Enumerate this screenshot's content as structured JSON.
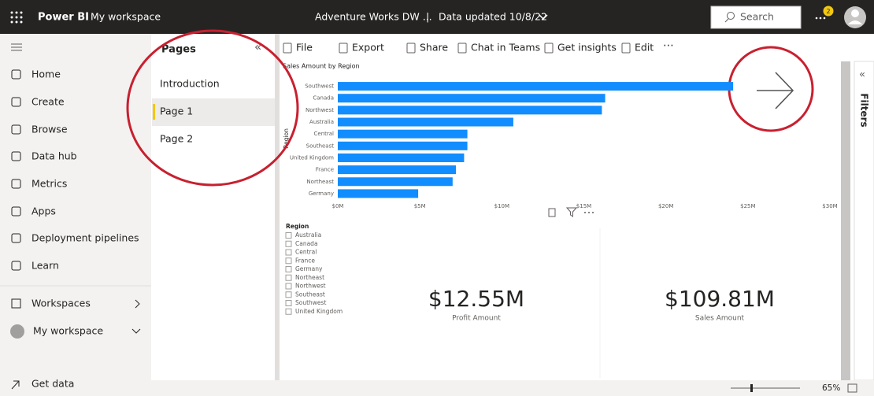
{
  "header": {
    "app": "Power BI",
    "workspace": "My workspace",
    "report": "Adventure Works DW ...",
    "separator": "|",
    "updated": "Data updated 10/8/22",
    "search": "Search",
    "notifications": "2"
  },
  "nav": {
    "items": [
      "Home",
      "Create",
      "Browse",
      "Data hub",
      "Metrics",
      "Apps",
      "Deployment pipelines",
      "Learn"
    ],
    "workspaces": "Workspaces",
    "my_workspace": "My workspace",
    "get_data": "Get data"
  },
  "pages": {
    "title": "Pages",
    "items": [
      "Introduction",
      "Page 1",
      "Page 2"
    ]
  },
  "toolbar": [
    "File",
    "Export",
    "Share",
    "Chat in Teams",
    "Get insights",
    "Edit"
  ],
  "chart_data": {
    "type": "bar",
    "orientation": "horizontal",
    "title": "Sales Amount by Region",
    "y_label": "Region",
    "categories": [
      "Southwest",
      "Canada",
      "Northwest",
      "Australia",
      "Central",
      "Southeast",
      "United Kingdom",
      "France",
      "Northeast",
      "Germany"
    ],
    "values": [
      24.1,
      16.3,
      16.1,
      10.7,
      7.9,
      7.9,
      7.7,
      7.2,
      7.0,
      4.9
    ],
    "color": "#118dff",
    "xlim": [
      0,
      30
    ],
    "xticks": [
      {
        "value": 0,
        "label": "$0M"
      },
      {
        "value": 5,
        "label": "$5M"
      },
      {
        "value": 10,
        "label": "$10M"
      },
      {
        "value": 15,
        "label": "$15M"
      },
      {
        "value": 20,
        "label": "$20M"
      },
      {
        "value": 25,
        "label": "$25M"
      },
      {
        "value": 30,
        "label": "$30M"
      }
    ],
    "grid": false
  },
  "slicer": {
    "title": "Region",
    "items": [
      "Australia",
      "Canada",
      "Central",
      "France",
      "Germany",
      "Northeast",
      "Northwest",
      "Southeast",
      "Southwest",
      "United Kingdom"
    ]
  },
  "cards": [
    {
      "value": "$12.55M",
      "label": "Profit Amount"
    },
    {
      "value": "$109.81M",
      "label": "Sales Amount"
    }
  ],
  "filters": "Filters",
  "zoom": "65%"
}
